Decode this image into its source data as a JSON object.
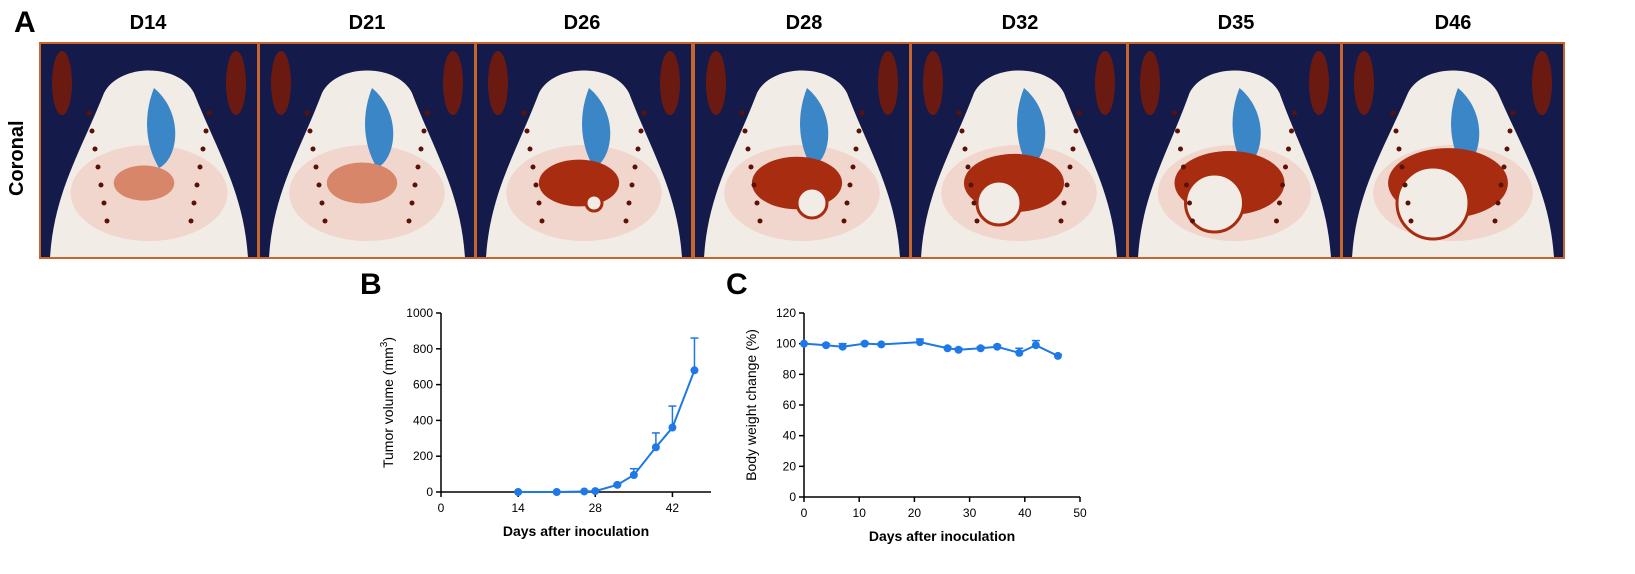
{
  "panel_a": {
    "letter": "A",
    "orientation_label": "Coronal",
    "days": [
      "D14",
      "D21",
      "D26",
      "D28",
      "D32",
      "D35",
      "D46"
    ]
  },
  "colors": {
    "frame": "#c8652e",
    "background": "#141b4a",
    "tissue_light": "#f2ece6",
    "tissue_pink": "#f0c8bd",
    "lung": "#3b86c6",
    "tumor_dark": "#a82c10",
    "tumor_light": "#d8866a",
    "line": "#1f78e8"
  },
  "chart_data": [
    {
      "panel": "B",
      "type": "line",
      "xlabel": "Days after inoculation",
      "ylabel": "Tumor volume (mm",
      "ylabel_sup": "3",
      "ylabel_close": ")",
      "xlim": [
        0,
        49
      ],
      "ylim": [
        0,
        1000
      ],
      "xticks": [
        0,
        14,
        28,
        42
      ],
      "yticks": [
        0,
        200,
        400,
        600,
        800,
        1000
      ],
      "x": [
        14,
        21,
        26,
        28,
        32,
        35,
        39,
        42,
        46
      ],
      "y": [
        0,
        0,
        3,
        5,
        40,
        95,
        250,
        360,
        680
      ],
      "error": [
        0,
        0,
        2,
        2,
        5,
        35,
        80,
        120,
        180
      ]
    },
    {
      "panel": "C",
      "type": "line",
      "xlabel": "Days after inoculation",
      "ylabel": "Body weight change (%)",
      "xlim": [
        0,
        50
      ],
      "ylim": [
        0,
        120
      ],
      "xticks": [
        0,
        10,
        20,
        30,
        40,
        50
      ],
      "yticks": [
        0,
        20,
        40,
        60,
        80,
        100,
        120
      ],
      "x": [
        0,
        4,
        7,
        11,
        14,
        21,
        26,
        28,
        32,
        35,
        39,
        42,
        46
      ],
      "y": [
        100,
        99,
        98,
        100,
        99.5,
        101,
        97,
        96,
        97,
        98,
        94,
        99,
        92
      ],
      "error": [
        0,
        1,
        2,
        1,
        0.5,
        2,
        1,
        1,
        1,
        1,
        3,
        3,
        1
      ]
    }
  ]
}
